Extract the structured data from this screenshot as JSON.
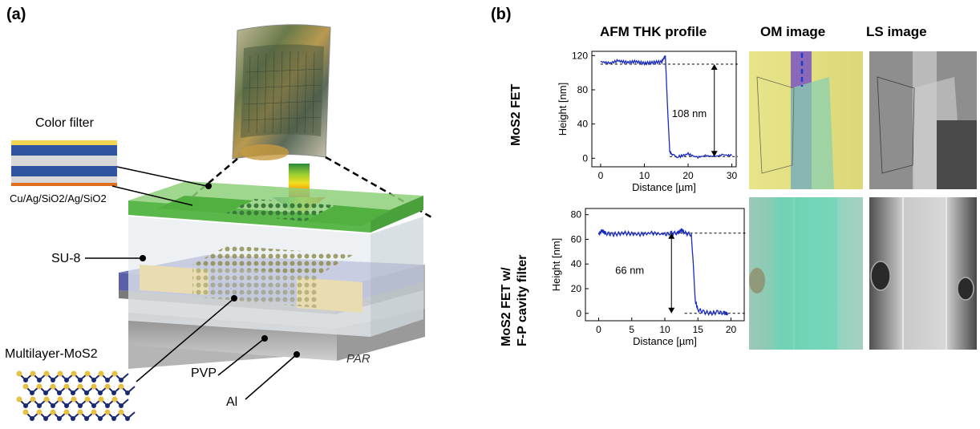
{
  "panel_a": {
    "letter": "(a)",
    "color_filter_label": "Color filter",
    "color_filter_stack": "Cu/Ag/SiO2/Ag/SiO2",
    "su8_label": "SU-8",
    "mos2_label": "Multilayer-MoS2",
    "pvp_label": "PVP",
    "al_label": "Al",
    "par_label": "PAR"
  },
  "panel_b": {
    "letter": "(b)",
    "col_afm": "AFM THK profile",
    "col_om": "OM image",
    "col_ls": "LS image",
    "row1_label": "MoS2 FET",
    "row2_label_line1": "MoS2 FET w/",
    "row2_label_line2": "F-P cavity filter"
  },
  "chart_data": [
    {
      "type": "line",
      "xlabel": "Distance [µm]",
      "ylabel": "Height [nm]",
      "xlim": [
        -2,
        31
      ],
      "ylim": [
        -10,
        125
      ],
      "xticks": [
        0,
        10,
        20,
        30
      ],
      "yticks": [
        0,
        40,
        80,
        120
      ],
      "series_color": "#1a2bbf",
      "x": [
        0,
        2,
        4,
        6,
        8,
        10,
        12,
        14,
        14.8,
        15.3,
        15.8,
        16.5,
        18,
        20,
        22,
        24,
        26,
        28,
        30
      ],
      "y": [
        113,
        111,
        114,
        112,
        113,
        111,
        112,
        113,
        120,
        60,
        8,
        3,
        2,
        5,
        1,
        3,
        2,
        4,
        3
      ],
      "annotation": "108 nm",
      "ref_high": 110,
      "ref_low": 2
    },
    {
      "type": "line",
      "xlabel": "Distance [µm]",
      "ylabel": "Height [nm]",
      "xlim": [
        -2,
        22
      ],
      "ylim": [
        -6,
        85
      ],
      "xticks": [
        0,
        5,
        10,
        15,
        20
      ],
      "yticks": [
        0,
        20,
        40,
        60,
        80
      ],
      "series_color": "#1a2bbf",
      "x": [
        0,
        0.5,
        1,
        2,
        4,
        6,
        8,
        10,
        11,
        12,
        12.5,
        13,
        14,
        14.3,
        14.6,
        15,
        16,
        17,
        18,
        19,
        19.5
      ],
      "y": [
        64,
        67,
        65,
        64,
        65,
        64,
        65,
        64,
        65,
        65,
        68,
        65,
        64,
        40,
        10,
        3,
        1,
        0,
        1,
        0,
        0
      ],
      "annotation": "66 nm",
      "ref_high": 65,
      "ref_low": 0
    }
  ]
}
